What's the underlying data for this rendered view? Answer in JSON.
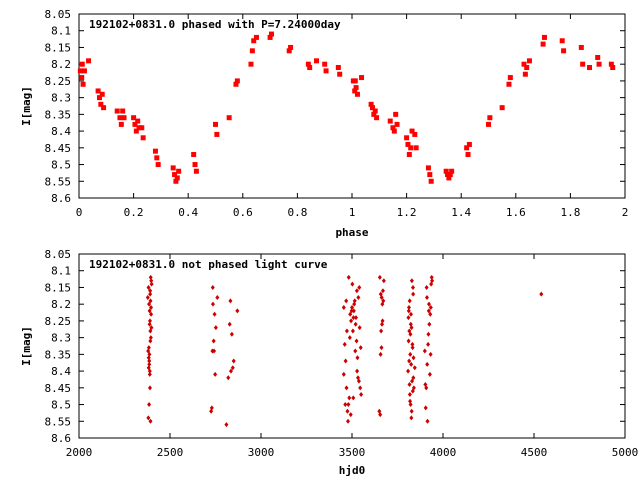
{
  "chart_data": [
    {
      "type": "scatter",
      "title": "192102+0831.0 phased with P=7.24000day",
      "xlabel": "phase",
      "ylabel": "I[mag]",
      "xlim": [
        0,
        2
      ],
      "ylim": [
        8.05,
        8.6
      ],
      "y_inverted": true,
      "grid": false,
      "legend": "none",
      "marker_color": "#ff0000",
      "marker_shape": "filled-square",
      "xticks": [
        "0",
        "0.2",
        "0.4",
        "0.6",
        "0.8",
        "1",
        "1.2",
        "1.4",
        "1.6",
        "1.8",
        "2"
      ],
      "yticks": [
        "8.05",
        "8.1",
        "8.15",
        "8.2",
        "8.25",
        "8.3",
        "8.35",
        "8.4",
        "8.45",
        "8.5",
        "8.55",
        "8.6"
      ],
      "series": [
        {
          "x": [
            0.005,
            0.01,
            0.012,
            0.015,
            0.02,
            0.035,
            0.07,
            0.075,
            0.08,
            0.085,
            0.09,
            0.14,
            0.15,
            0.155,
            0.16,
            0.165,
            0.2,
            0.205,
            0.21,
            0.215,
            0.22,
            0.23,
            0.235,
            0.28,
            0.285,
            0.29,
            0.345,
            0.35,
            0.355,
            0.36,
            0.365,
            0.42,
            0.425,
            0.43,
            0.5,
            0.505,
            0.55,
            0.575,
            0.58,
            0.63,
            0.635,
            0.64,
            0.65,
            0.7,
            0.705,
            0.77,
            0.775,
            0.84,
            0.845,
            0.87,
            0.9,
            0.905,
            0.95,
            0.955,
            1.005,
            1.01,
            1.012,
            1.015,
            1.02,
            1.035,
            1.07,
            1.075,
            1.08,
            1.085,
            1.09,
            1.14,
            1.15,
            1.155,
            1.16,
            1.165,
            1.2,
            1.205,
            1.21,
            1.215,
            1.22,
            1.23,
            1.235,
            1.28,
            1.285,
            1.29,
            1.345,
            1.35,
            1.355,
            1.36,
            1.365,
            1.42,
            1.425,
            1.43,
            1.5,
            1.505,
            1.55,
            1.575,
            1.58,
            1.63,
            1.635,
            1.64,
            1.65,
            1.7,
            1.705,
            1.77,
            1.775,
            1.84,
            1.845,
            1.87,
            1.9,
            1.905,
            1.95,
            1.955
          ],
          "y": [
            8.22,
            8.24,
            8.2,
            8.26,
            8.22,
            8.19,
            8.28,
            8.3,
            8.32,
            8.29,
            8.33,
            8.34,
            8.36,
            8.38,
            8.34,
            8.36,
            8.36,
            8.38,
            8.4,
            8.37,
            8.39,
            8.39,
            8.42,
            8.46,
            8.48,
            8.5,
            8.51,
            8.53,
            8.55,
            8.54,
            8.52,
            8.47,
            8.5,
            8.52,
            8.38,
            8.41,
            8.36,
            8.26,
            8.25,
            8.2,
            8.16,
            8.13,
            8.12,
            8.12,
            8.11,
            8.16,
            8.15,
            8.2,
            8.21,
            8.19,
            8.2,
            8.22,
            8.21,
            8.23,
            8.25,
            8.28,
            8.25,
            8.27,
            8.29,
            8.24,
            8.32,
            8.33,
            8.35,
            8.34,
            8.36,
            8.37,
            8.39,
            8.4,
            8.35,
            8.38,
            8.42,
            8.44,
            8.47,
            8.45,
            8.4,
            8.41,
            8.45,
            8.51,
            8.53,
            8.55,
            8.52,
            8.53,
            8.54,
            8.53,
            8.52,
            8.45,
            8.47,
            8.44,
            8.38,
            8.36,
            8.33,
            8.26,
            8.24,
            8.2,
            8.23,
            8.21,
            8.19,
            8.14,
            8.12,
            8.13,
            8.16,
            8.15,
            8.2,
            8.21,
            8.18,
            8.2,
            8.2,
            8.21
          ]
        }
      ]
    },
    {
      "type": "scatter",
      "title": "192102+0831.0 not phased light curve",
      "xlabel": "hjd0",
      "ylabel": "I[mag]",
      "xlim": [
        2000,
        5000
      ],
      "ylim": [
        8.05,
        8.6
      ],
      "y_inverted": true,
      "grid": false,
      "legend": "none",
      "marker_color": "#cc0000",
      "marker_shape": "small-diamond",
      "xticks": [
        "2000",
        "2500",
        "3000",
        "3500",
        "4000",
        "4500",
        "5000"
      ],
      "yticks": [
        "8.05",
        "8.1",
        "8.15",
        "8.2",
        "8.25",
        "8.3",
        "8.35",
        "8.4",
        "8.45",
        "8.5",
        "8.55",
        "8.6"
      ],
      "series": [
        {
          "x": [
            2378,
            2382,
            2385,
            2388,
            2390,
            2392,
            2395,
            2397,
            2380,
            2383,
            2386,
            2389,
            2391,
            2393,
            2396,
            2398,
            2384,
            2387,
            2394,
            2399,
            2390,
            2385,
            2381,
            2393,
            2396,
            2388,
            2392,
            2386,
            2383,
            2389,
            2391,
            2726,
            2730,
            2736,
            2745,
            2760,
            2752,
            2735,
            2740,
            2742,
            2748,
            2733,
            2810,
            2820,
            2835,
            2850,
            2870,
            2832,
            2828,
            2840,
            2845,
            3455,
            3460,
            3465,
            3470,
            3475,
            3480,
            3485,
            3490,
            3495,
            3500,
            3505,
            3510,
            3515,
            3520,
            3525,
            3530,
            3535,
            3540,
            3545,
            3550,
            3463,
            3478,
            3488,
            3498,
            3508,
            3518,
            3528,
            3538,
            3455,
            3482,
            3502,
            3512,
            3522,
            3542,
            3468,
            3493,
            3533,
            3548,
            3472,
            3507,
            3527,
            3650,
            3655,
            3660,
            3665,
            3670,
            3675,
            3658,
            3663,
            3668,
            3672,
            3653,
            3657,
            3662,
            3667,
            3810,
            3815,
            3820,
            3825,
            3830,
            3835,
            3812,
            3818,
            3822,
            3828,
            3832,
            3838,
            3808,
            3816,
            3826,
            3836,
            3813,
            3823,
            3833,
            3840,
            3845,
            3811,
            3819,
            3829,
            3837,
            3821,
            3814,
            3827,
            3834,
            3817,
            3824,
            3900,
            3905,
            3910,
            3915,
            3920,
            3925,
            3930,
            3935,
            3940,
            3903,
            3908,
            3913,
            3918,
            3923,
            3928,
            3933,
            3938,
            3912,
            3922,
            3932,
            4540
          ],
          "y": [
            8.18,
            8.15,
            8.2,
            8.22,
            8.25,
            8.28,
            8.3,
            8.13,
            8.34,
            8.36,
            8.38,
            8.4,
            8.17,
            8.19,
            8.23,
            8.27,
            8.33,
            8.35,
            8.12,
            8.14,
            8.45,
            8.5,
            8.54,
            8.55,
            8.21,
            8.26,
            8.31,
            8.37,
            8.39,
            8.41,
            8.16,
            8.52,
            8.51,
            8.2,
            8.23,
            8.18,
            8.27,
            8.15,
            8.31,
            8.34,
            8.41,
            8.34,
            8.56,
            8.42,
            8.4,
            8.37,
            8.22,
            8.19,
            8.26,
            8.29,
            8.39,
            8.41,
            8.32,
            8.37,
            8.45,
            8.52,
            8.5,
            8.48,
            8.23,
            8.25,
            8.21,
            8.28,
            8.22,
            8.19,
            8.26,
            8.31,
            8.36,
            8.18,
            8.15,
            8.45,
            8.47,
            8.5,
            8.55,
            8.3,
            8.22,
            8.24,
            8.34,
            8.4,
            8.43,
            8.21,
            8.12,
            8.14,
            8.2,
            8.24,
            8.27,
            8.19,
            8.53,
            8.42,
            8.33,
            8.28,
            8.48,
            8.16,
            8.52,
            8.53,
            8.28,
            8.26,
            8.16,
            8.13,
            8.17,
            8.18,
            8.25,
            8.19,
            8.12,
            8.35,
            8.33,
            8.2,
            8.24,
            8.28,
            8.35,
            8.38,
            8.43,
            8.15,
            8.22,
            8.47,
            8.5,
            8.52,
            8.32,
            8.36,
            8.4,
            8.44,
            8.54,
            8.17,
            8.21,
            8.26,
            8.33,
            8.45,
            8.39,
            8.31,
            8.49,
            8.13,
            8.42,
            8.29,
            8.37,
            8.27,
            8.46,
            8.19,
            8.23,
            8.34,
            8.51,
            8.15,
            8.55,
            8.29,
            8.26,
            8.23,
            8.14,
            8.13,
            8.44,
            8.45,
            8.38,
            8.32,
            8.2,
            8.41,
            8.21,
            8.12,
            8.18,
            8.22,
            8.35,
            8.17
          ],
          "last_point_note": ""
        }
      ]
    }
  ]
}
